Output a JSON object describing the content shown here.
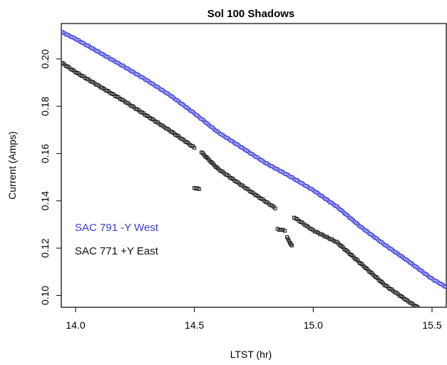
{
  "chart_data": {
    "type": "scatter",
    "title": "Sol 100 Shadows",
    "xlabel": "LTST (hr)",
    "ylabel": "Current (Amps)",
    "xlim": [
      13.94,
      15.56
    ],
    "ylim": [
      0.095,
      0.215
    ],
    "x_ticks": [
      14.0,
      14.5,
      15.0,
      15.5
    ],
    "x_tick_labels": [
      "14.0",
      "14.5",
      "15.0",
      "15.5"
    ],
    "y_ticks": [
      0.1,
      0.12,
      0.14,
      0.16,
      0.18,
      0.2
    ],
    "y_tick_labels": [
      "0.10",
      "0.12",
      "0.14",
      "0.16",
      "0.18",
      "0.20"
    ],
    "grid": false,
    "legend_position": "bottom-left",
    "series": [
      {
        "name": "SAC 791 -Y  West",
        "color": "#3b3bdd",
        "marker": "circle",
        "segments": [
          {
            "x": [
              13.94,
              14.0,
              14.1,
              14.2,
              14.3,
              14.4,
              14.5,
              14.6,
              14.7,
              14.8,
              14.9,
              15.0,
              15.1,
              15.2,
              15.3,
              15.4,
              15.5,
              15.56
            ],
            "y": [
              0.2115,
              0.2085,
              0.2028,
              0.197,
              0.191,
              0.1845,
              0.177,
              0.169,
              0.1625,
              0.156,
              0.1505,
              0.1445,
              0.1375,
              0.129,
              0.1215,
              0.1145,
              0.107,
              0.1035
            ]
          }
        ]
      },
      {
        "name": "SAC 771 +Y  East",
        "color": "#111111",
        "marker": "square",
        "segments": [
          {
            "x": [
              13.94,
              14.0,
              14.1,
              14.2,
              14.3,
              14.4,
              14.5
            ],
            "y": [
              0.1985,
              0.1945,
              0.1885,
              0.1825,
              0.176,
              0.1695,
              0.1625
            ]
          },
          {
            "x": [
              14.5,
              14.52
            ],
            "y": [
              0.1455,
              0.145
            ]
          },
          {
            "x": [
              14.53,
              14.6,
              14.7,
              14.78,
              14.84
            ],
            "y": [
              0.1605,
              0.1535,
              0.1465,
              0.141,
              0.137
            ]
          },
          {
            "x": [
              14.85,
              14.88
            ],
            "y": [
              0.128,
              0.1275
            ]
          },
          {
            "x": [
              14.89,
              14.91
            ],
            "y": [
              0.1245,
              0.121
            ]
          },
          {
            "x": [
              14.92,
              15.0,
              15.1,
              15.2,
              15.3,
              15.4,
              15.47
            ],
            "y": [
              0.133,
              0.1275,
              0.1225,
              0.1135,
              0.1045,
              0.0975,
              0.093
            ]
          }
        ]
      }
    ]
  }
}
